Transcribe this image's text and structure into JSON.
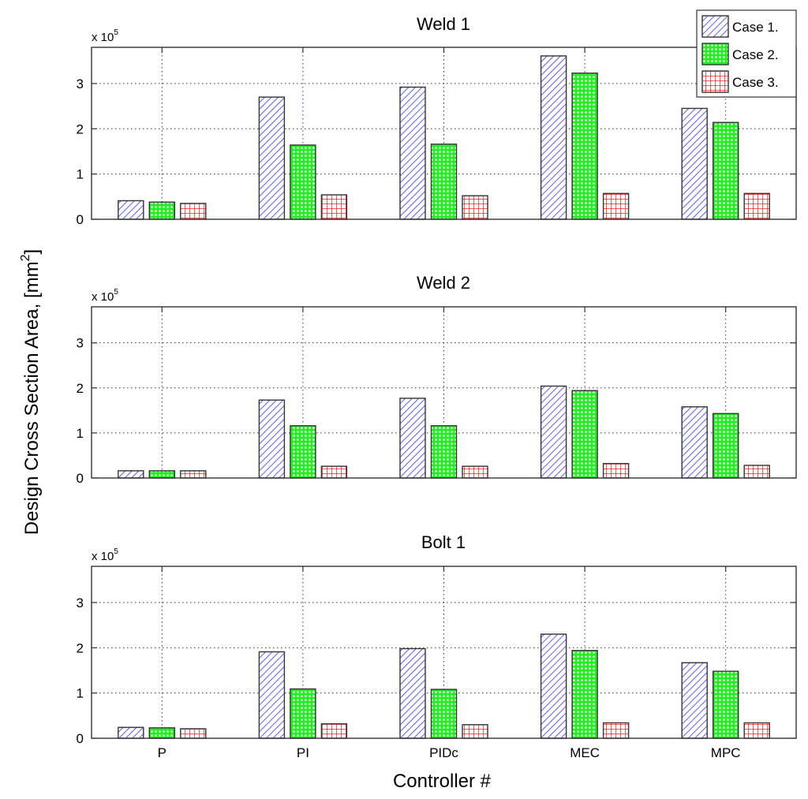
{
  "chart_data": [
    {
      "type": "bar",
      "title": "Weld 1",
      "categories": [
        "P",
        "PI",
        "PIDc",
        "MEC",
        "MPC"
      ],
      "series": [
        {
          "name": "Case 1.",
          "values": [
            41000,
            270000,
            292000,
            361000,
            245000
          ]
        },
        {
          "name": "Case 2.",
          "values": [
            38000,
            164000,
            166000,
            323000,
            214000
          ]
        },
        {
          "name": "Case 3.",
          "values": [
            35000,
            54000,
            52000,
            57000,
            57000
          ]
        }
      ],
      "y_multiplier_label": "x 10",
      "y_multiplier_exponent": "5",
      "yticks": [
        0,
        1,
        2,
        3
      ],
      "ylim": [
        0,
        380000
      ],
      "grid": true,
      "legend": {
        "entries": [
          "Case 1.",
          "Case 2.",
          "Case 3."
        ],
        "placement": "top-right"
      }
    },
    {
      "type": "bar",
      "title": "Weld 2",
      "categories": [
        "P",
        "PI",
        "PIDc",
        "MEC",
        "MPC"
      ],
      "series": [
        {
          "name": "Case 1.",
          "values": [
            16000,
            173000,
            177000,
            204000,
            158000
          ]
        },
        {
          "name": "Case 2.",
          "values": [
            16000,
            116000,
            116000,
            194000,
            143000
          ]
        },
        {
          "name": "Case 3.",
          "values": [
            16000,
            26000,
            26000,
            32000,
            28000
          ]
        }
      ],
      "y_multiplier_label": "x 10",
      "y_multiplier_exponent": "5",
      "yticks": [
        0,
        1,
        2,
        3
      ],
      "ylim": [
        0,
        380000
      ],
      "grid": true
    },
    {
      "type": "bar",
      "title": "Bolt 1",
      "categories": [
        "P",
        "PI",
        "PIDc",
        "MEC",
        "MPC"
      ],
      "series": [
        {
          "name": "Case 1.",
          "values": [
            24000,
            191000,
            198000,
            230000,
            167000
          ]
        },
        {
          "name": "Case 2.",
          "values": [
            23000,
            109000,
            108000,
            194000,
            148000
          ]
        },
        {
          "name": "Case 3.",
          "values": [
            21000,
            32000,
            30000,
            34000,
            34000
          ]
        }
      ],
      "y_multiplier_label": "x 10",
      "y_multiplier_exponent": "5",
      "yticks": [
        0,
        1,
        2,
        3
      ],
      "ylim": [
        0,
        380000
      ],
      "grid": true
    }
  ],
  "labels": {
    "ylabel": "Design Cross Section Area, [mm",
    "ylabel_sup": "2",
    "ylabel_close": "]",
    "xlabel": "Controller #"
  },
  "series_style": [
    {
      "name": "Case 1.",
      "pattern": "diagonal-hatch",
      "color": "#3333ff"
    },
    {
      "name": "Case 2.",
      "pattern": "cross-hatch",
      "color": "#22ee22"
    },
    {
      "name": "Case 3.",
      "pattern": "grid",
      "color": "#ff1111"
    }
  ]
}
